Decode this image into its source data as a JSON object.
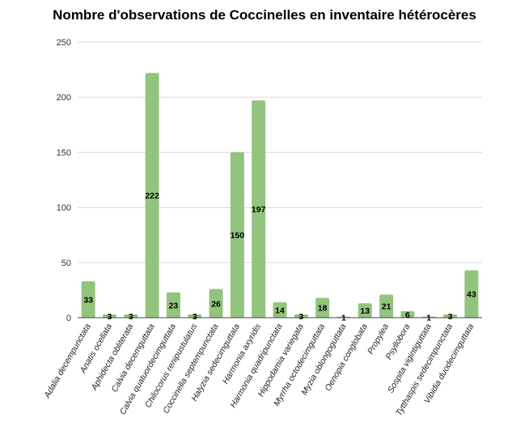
{
  "chart_data": {
    "type": "bar",
    "title": "Nombre d'observations de Coccinelles en inventaire hétérocères",
    "xlabel": "",
    "ylabel": "",
    "ylim": [
      0,
      250
    ],
    "yticks": [
      0,
      50,
      100,
      150,
      200,
      250
    ],
    "grid": true,
    "bar_color": "#93c47d",
    "categories": [
      "Adalia decempunctata",
      "Anatis ocellata",
      "Aphidecta obliterata",
      "Calvia decemguttata",
      "Calvia quatuordecimguttata",
      "Chilocorus renipustulatus",
      "Coccinella septempunctata",
      "Halyzia sedecimguttata",
      "Harmonia axyridis",
      "Harmonia quadripunctata",
      "Hippodamia variegata",
      "Myrrha octodecimguttata",
      "Myzia oblongoguttata",
      "Oenopia conglobata",
      "Propylea",
      "Psyllobora",
      "Sospita vigintiguttata",
      "Tytthaspis sedecimpunctata",
      "Vibidia duodecimguttata"
    ],
    "values": [
      33,
      3,
      3,
      222,
      23,
      3,
      26,
      150,
      197,
      14,
      3,
      18,
      1,
      13,
      21,
      6,
      1,
      3,
      43
    ]
  }
}
